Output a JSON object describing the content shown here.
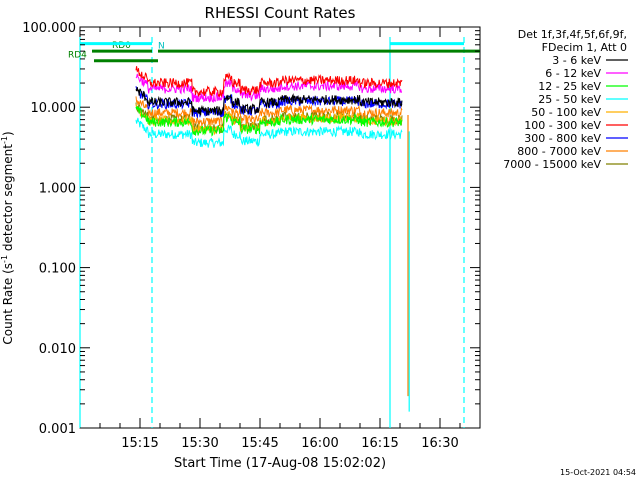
{
  "chart_data": {
    "type": "line",
    "title": "RHESSI Count Rates",
    "xlabel": "Start Time (17-Aug-08 15:02:02)",
    "ylabel_main": "Count Rate (s",
    "ylabel_sup1": "-1",
    "ylabel_mid": " detector segment",
    "ylabel_sup2": "-1",
    "ylabel_end": ")",
    "y_scale": "log",
    "ylim": [
      0.001,
      100
    ],
    "xlim_minutes": [
      0,
      100
    ],
    "x_ticks": [
      {
        "minute": 15,
        "label": "15:15"
      },
      {
        "minute": 30,
        "label": "15:30"
      },
      {
        "minute": 45,
        "label": "15:45"
      },
      {
        "minute": 60,
        "label": "16:00"
      },
      {
        "minute": 75,
        "label": "16:15"
      },
      {
        "minute": 90,
        "label": "16:30"
      }
    ],
    "y_ticks": [
      {
        "value": 100,
        "label": "100.000"
      },
      {
        "value": 10,
        "label": "10.000"
      },
      {
        "value": 1,
        "label": "1.000"
      },
      {
        "value": 0.1,
        "label": "0.100"
      },
      {
        "value": 0.01,
        "label": "0.010"
      },
      {
        "value": 0.001,
        "label": "0.001"
      }
    ],
    "legend_header": [
      "Det 1f,3f,4f,5f,6f,9f,",
      "FDecim 1, Att 0"
    ],
    "legend_position": "right",
    "series": [
      {
        "name": "3 - 6 keV",
        "color": "#000000",
        "level": 11.5,
        "start": 14.0,
        "end": 80.5
      },
      {
        "name": "6 - 12 keV",
        "color": "#ff00ff",
        "level": 17.0,
        "start": 14.0,
        "end": 80.5
      },
      {
        "name": "12 - 25 keV",
        "color": "#00ff00",
        "level": 6.5,
        "start": 14.0,
        "end": 80.5
      },
      {
        "name": "25 - 50 keV",
        "color": "#00ffff",
        "level": 4.6,
        "start": 14.0,
        "end": 80.5
      },
      {
        "name": "50 - 100 keV",
        "color": "#ffb000",
        "level": 6.8,
        "start": 14.0,
        "end": 80.5
      },
      {
        "name": "100 - 300 keV",
        "color": "#ff0000",
        "level": 20.0,
        "start": 14.0,
        "end": 80.5
      },
      {
        "name": "300 - 800 keV",
        "color": "#0000ff",
        "level": 11.0,
        "start": 14.0,
        "end": 80.5
      },
      {
        "name": "800 - 7000 keV",
        "color": "#ff8000",
        "level": 8.5,
        "start": 14.0,
        "end": 80.5
      },
      {
        "name": "7000 - 15000 keV",
        "color": "#808000",
        "level": 7.0,
        "start": 14.0,
        "end": 80.5
      }
    ],
    "flags": [
      {
        "label": "RD0",
        "color": "#008000",
        "level": 50,
        "segments": [
          [
            3,
            18
          ],
          [
            19.5,
            100
          ]
        ]
      },
      {
        "label": "RD4",
        "color": "#008000",
        "level": 38,
        "segments": [
          [
            3.5,
            19.5
          ]
        ]
      },
      {
        "label": "N",
        "color": "#00ffff",
        "level": 62,
        "segments": [
          [
            0,
            18
          ],
          [
            77.5,
            96
          ]
        ]
      }
    ],
    "vertical_markers_minutes": [
      0,
      18,
      77.5,
      96
    ],
    "grid": false
  },
  "timestamp": "15-Oct-2021 04:54"
}
